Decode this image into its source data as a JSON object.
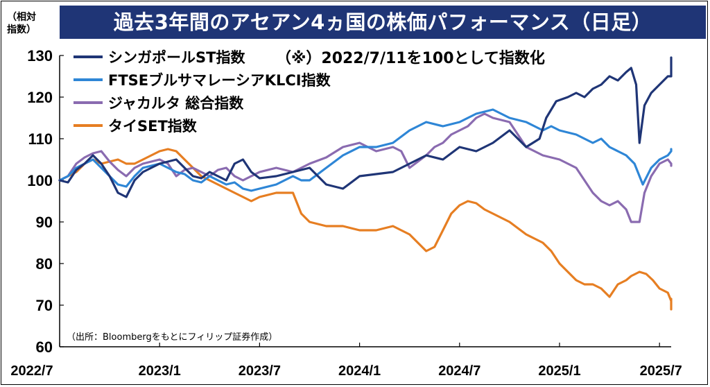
{
  "title": "過去3年間のアセアン4ヵ国の株価パフォーマンス（日足）",
  "unit_label": "（相対\n指数）",
  "note": "（※）2022/7/11を100として指数化",
  "source": "（出所：Bloombergをもとにフィリップ証券作成）",
  "chart_data": {
    "type": "line",
    "x_ticks": [
      "2022/7",
      "2023/1",
      "2023/7",
      "2024/1",
      "2024/7",
      "2025/1",
      "2025/7"
    ],
    "y_ticks": [
      60,
      70,
      80,
      90,
      100,
      110,
      120,
      130
    ],
    "ylim": [
      60,
      130
    ],
    "x_unit": "months since 2022/7",
    "xlim": [
      0,
      36.7
    ],
    "legend_position": "top-left",
    "grid": false,
    "series": [
      {
        "name": "シンガポールST指数",
        "color": "#1f3576",
        "points": [
          [
            0,
            100
          ],
          [
            0.5,
            99.5
          ],
          [
            1,
            102.5
          ],
          [
            1.5,
            104
          ],
          [
            2,
            106
          ],
          [
            2.5,
            104
          ],
          [
            3,
            101
          ],
          [
            3.5,
            97
          ],
          [
            4,
            96
          ],
          [
            4.5,
            100
          ],
          [
            5,
            102
          ],
          [
            5.5,
            103
          ],
          [
            6,
            104
          ],
          [
            6.5,
            104.5
          ],
          [
            7,
            105
          ],
          [
            7.5,
            103
          ],
          [
            8,
            101
          ],
          [
            8.5,
            100.5
          ],
          [
            9,
            102
          ],
          [
            9.5,
            101
          ],
          [
            10,
            100
          ],
          [
            10.5,
            104
          ],
          [
            11,
            105
          ],
          [
            11.5,
            102
          ],
          [
            12,
            100.5
          ],
          [
            13,
            101
          ],
          [
            14,
            102
          ],
          [
            15,
            103
          ],
          [
            15.5,
            101
          ],
          [
            16,
            99
          ],
          [
            17,
            98
          ],
          [
            18,
            101
          ],
          [
            19,
            101.5
          ],
          [
            20,
            102
          ],
          [
            21,
            104
          ],
          [
            22,
            106
          ],
          [
            23,
            105
          ],
          [
            24,
            108
          ],
          [
            25,
            107
          ],
          [
            26,
            109
          ],
          [
            27,
            112
          ],
          [
            28,
            108
          ],
          [
            28.8,
            110
          ],
          [
            29.2,
            115
          ],
          [
            29.8,
            119
          ],
          [
            30.5,
            120
          ],
          [
            31,
            121
          ],
          [
            31.5,
            120
          ],
          [
            32,
            122
          ],
          [
            32.5,
            123
          ],
          [
            33,
            125
          ],
          [
            33.5,
            124
          ],
          [
            34,
            126
          ],
          [
            34.3,
            127
          ],
          [
            34.6,
            123
          ],
          [
            34.8,
            109
          ],
          [
            35.1,
            118
          ],
          [
            35.5,
            121
          ],
          [
            36,
            123
          ],
          [
            36.5,
            125
          ],
          [
            37.2,
            125
          ],
          [
            37.8,
            128
          ],
          [
            38,
            129.5
          ]
        ]
      },
      {
        "name": "FTSEブルサマレーシアKLCI指数",
        "color": "#2e86d6",
        "points": [
          [
            0,
            100
          ],
          [
            0.5,
            101
          ],
          [
            1,
            103
          ],
          [
            1.5,
            104
          ],
          [
            2,
            105
          ],
          [
            2.5,
            103
          ],
          [
            3,
            101
          ],
          [
            3.5,
            99
          ],
          [
            4,
            98.5
          ],
          [
            4.5,
            101
          ],
          [
            5,
            103
          ],
          [
            5.5,
            103.5
          ],
          [
            6,
            104
          ],
          [
            6.5,
            103
          ],
          [
            7,
            102
          ],
          [
            7.5,
            101.5
          ],
          [
            8,
            100
          ],
          [
            8.5,
            99.5
          ],
          [
            9,
            101
          ],
          [
            9.5,
            100
          ],
          [
            10,
            99
          ],
          [
            10.5,
            99.5
          ],
          [
            11,
            98
          ],
          [
            11.5,
            97.5
          ],
          [
            12,
            98
          ],
          [
            13,
            99
          ],
          [
            14,
            101
          ],
          [
            14.5,
            100
          ],
          [
            15,
            100
          ],
          [
            16,
            103
          ],
          [
            17,
            106
          ],
          [
            18,
            108
          ],
          [
            19,
            108
          ],
          [
            20,
            109
          ],
          [
            21,
            112
          ],
          [
            22,
            114
          ],
          [
            23,
            113
          ],
          [
            24,
            114
          ],
          [
            25,
            116
          ],
          [
            26,
            117
          ],
          [
            27,
            115
          ],
          [
            28,
            114
          ],
          [
            28.5,
            113
          ],
          [
            29,
            112
          ],
          [
            29.5,
            113
          ],
          [
            30,
            112
          ],
          [
            31,
            111
          ],
          [
            31.5,
            110
          ],
          [
            32,
            109
          ],
          [
            32.5,
            110
          ],
          [
            33,
            108
          ],
          [
            33.5,
            107
          ],
          [
            34,
            106
          ],
          [
            34.5,
            104
          ],
          [
            35,
            99
          ],
          [
            35.5,
            103
          ],
          [
            36,
            105
          ],
          [
            36.5,
            106
          ],
          [
            37,
            107
          ],
          [
            37.5,
            107.5
          ],
          [
            38,
            107.5
          ]
        ]
      },
      {
        "name": "ジャカルタ 総合指数",
        "color": "#8a6bb0",
        "points": [
          [
            0,
            100
          ],
          [
            0.5,
            101
          ],
          [
            1,
            104
          ],
          [
            1.5,
            105.5
          ],
          [
            2,
            106.5
          ],
          [
            2.5,
            107
          ],
          [
            3,
            104.5
          ],
          [
            3.5,
            102.5
          ],
          [
            4,
            101
          ],
          [
            4.5,
            103
          ],
          [
            5,
            104
          ],
          [
            5.5,
            104.5
          ],
          [
            6,
            105
          ],
          [
            6.5,
            104
          ],
          [
            7,
            101
          ],
          [
            7.5,
            102.5
          ],
          [
            8,
            103
          ],
          [
            8.5,
            102
          ],
          [
            9,
            101
          ],
          [
            9.5,
            102.5
          ],
          [
            10,
            103
          ],
          [
            10.5,
            101
          ],
          [
            11,
            100
          ],
          [
            11.5,
            101
          ],
          [
            12,
            102
          ],
          [
            13,
            103
          ],
          [
            14,
            102
          ],
          [
            15,
            104
          ],
          [
            16,
            105.5
          ],
          [
            17,
            108
          ],
          [
            18,
            109
          ],
          [
            18.5,
            108
          ],
          [
            19,
            107
          ],
          [
            20,
            108
          ],
          [
            20.5,
            107
          ],
          [
            21,
            103
          ],
          [
            22,
            106
          ],
          [
            22.5,
            108
          ],
          [
            23,
            109
          ],
          [
            23.5,
            111
          ],
          [
            24,
            112
          ],
          [
            24.5,
            113
          ],
          [
            25,
            115
          ],
          [
            25.5,
            116
          ],
          [
            26,
            115
          ],
          [
            27,
            114
          ],
          [
            27.5,
            111
          ],
          [
            28,
            108
          ],
          [
            28.5,
            107
          ],
          [
            29,
            106
          ],
          [
            30,
            105
          ],
          [
            30.5,
            104
          ],
          [
            31,
            103
          ],
          [
            31.5,
            100
          ],
          [
            32,
            97
          ],
          [
            32.5,
            95
          ],
          [
            33,
            94
          ],
          [
            33.5,
            95
          ],
          [
            34,
            93
          ],
          [
            34.3,
            90
          ],
          [
            34.8,
            90
          ],
          [
            35.1,
            97
          ],
          [
            35.5,
            101
          ],
          [
            36,
            104
          ],
          [
            36.5,
            105
          ],
          [
            37,
            104
          ],
          [
            37.5,
            103.5
          ],
          [
            38,
            104
          ]
        ]
      },
      {
        "name": "タイSET指数",
        "color": "#e67e22",
        "points": [
          [
            0,
            100
          ],
          [
            0.5,
            101
          ],
          [
            1,
            102
          ],
          [
            1.5,
            104
          ],
          [
            2,
            105
          ],
          [
            2.5,
            104
          ],
          [
            3,
            104.5
          ],
          [
            3.5,
            105
          ],
          [
            4,
            104
          ],
          [
            4.5,
            104
          ],
          [
            5,
            105
          ],
          [
            5.5,
            106
          ],
          [
            6,
            107
          ],
          [
            6.5,
            107.5
          ],
          [
            7,
            107
          ],
          [
            7.5,
            105
          ],
          [
            8,
            103
          ],
          [
            8.5,
            101
          ],
          [
            9,
            100
          ],
          [
            9.5,
            99
          ],
          [
            10,
            98
          ],
          [
            10.5,
            97
          ],
          [
            11,
            96
          ],
          [
            11.5,
            95
          ],
          [
            12,
            96
          ],
          [
            13,
            97
          ],
          [
            14,
            97
          ],
          [
            14.5,
            92
          ],
          [
            15,
            90
          ],
          [
            16,
            89
          ],
          [
            17,
            89
          ],
          [
            18,
            88
          ],
          [
            19,
            88
          ],
          [
            20,
            89
          ],
          [
            21,
            87
          ],
          [
            21.5,
            85
          ],
          [
            22,
            83
          ],
          [
            22.5,
            84
          ],
          [
            23,
            88
          ],
          [
            23.5,
            92
          ],
          [
            24,
            94
          ],
          [
            24.5,
            95
          ],
          [
            25,
            94.5
          ],
          [
            25.5,
            93
          ],
          [
            26,
            92
          ],
          [
            27,
            90
          ],
          [
            28,
            87
          ],
          [
            28.5,
            86
          ],
          [
            29,
            85
          ],
          [
            29.5,
            83
          ],
          [
            30,
            80
          ],
          [
            30.5,
            78
          ],
          [
            31,
            76
          ],
          [
            31.5,
            75
          ],
          [
            32,
            75
          ],
          [
            32.5,
            74
          ],
          [
            33,
            72
          ],
          [
            33.5,
            75
          ],
          [
            34,
            76
          ],
          [
            34.3,
            77
          ],
          [
            34.8,
            78
          ],
          [
            35.2,
            77.5
          ],
          [
            35.6,
            76
          ],
          [
            36,
            74
          ],
          [
            36.5,
            73
          ],
          [
            37,
            71
          ],
          [
            37.3,
            69
          ],
          [
            37.5,
            70
          ],
          [
            38,
            71.5
          ]
        ]
      }
    ]
  }
}
